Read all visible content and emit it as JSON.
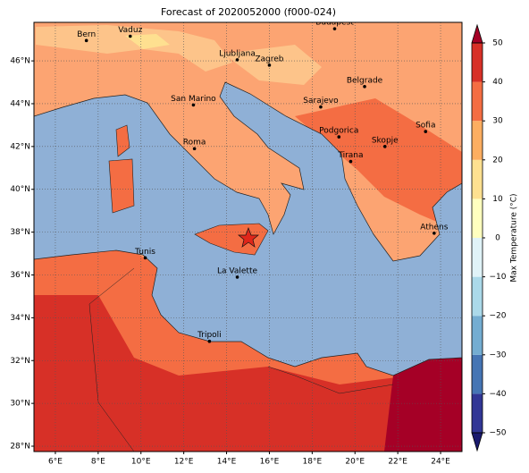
{
  "map": {
    "title": "Forecast of 2020052000 (f000-024)",
    "lon_range": [
      5,
      25
    ],
    "lat_range": [
      27.75,
      47.8
    ],
    "lon_ticks": [
      {
        "value": 6,
        "label": "6°E"
      },
      {
        "value": 8,
        "label": "8°E"
      },
      {
        "value": 10,
        "label": "10°E"
      },
      {
        "value": 12,
        "label": "12°E"
      },
      {
        "value": 14,
        "label": "14°E"
      },
      {
        "value": 16,
        "label": "16°E"
      },
      {
        "value": 18,
        "label": "18°E"
      },
      {
        "value": 20,
        "label": "20°E"
      },
      {
        "value": 22,
        "label": "22°E"
      },
      {
        "value": 24,
        "label": "24°E"
      }
    ],
    "lat_ticks": [
      {
        "value": 28,
        "label": "28°N"
      },
      {
        "value": 30,
        "label": "30°N"
      },
      {
        "value": 32,
        "label": "32°N"
      },
      {
        "value": 34,
        "label": "34°N"
      },
      {
        "value": 36,
        "label": "36°N"
      },
      {
        "value": 38,
        "label": "38°N"
      },
      {
        "value": 40,
        "label": "40°N"
      },
      {
        "value": 42,
        "label": "42°N"
      },
      {
        "value": 44,
        "label": "44°N"
      },
      {
        "value": 46,
        "label": "46°N"
      }
    ],
    "cities": [
      {
        "name": "Bern",
        "lon": 7.45,
        "lat": 46.95
      },
      {
        "name": "Vaduz",
        "lon": 9.5,
        "lat": 47.15
      },
      {
        "name": "Budapest",
        "lon": 19.05,
        "lat": 47.5
      },
      {
        "name": "Ljubljana",
        "lon": 14.5,
        "lat": 46.05
      },
      {
        "name": "Zagreb",
        "lon": 16.0,
        "lat": 45.8
      },
      {
        "name": "San Marino",
        "lon": 12.45,
        "lat": 43.94
      },
      {
        "name": "Belgrade",
        "lon": 20.45,
        "lat": 44.8
      },
      {
        "name": "Sarajevo",
        "lon": 18.4,
        "lat": 43.85
      },
      {
        "name": "Sofia",
        "lon": 23.3,
        "lat": 42.7
      },
      {
        "name": "Podgorica",
        "lon": 19.25,
        "lat": 42.45
      },
      {
        "name": "Skopje",
        "lon": 21.4,
        "lat": 42.0
      },
      {
        "name": "Roma",
        "lon": 12.5,
        "lat": 41.9
      },
      {
        "name": "Tirana",
        "lon": 19.8,
        "lat": 41.3
      },
      {
        "name": "Athens",
        "lon": 23.7,
        "lat": 37.95
      },
      {
        "name": "Tunis",
        "lon": 10.2,
        "lat": 36.8
      },
      {
        "name": "La Valette",
        "lon": 14.5,
        "lat": 35.9
      },
      {
        "name": "Tripoli",
        "lon": 13.2,
        "lat": 32.9
      }
    ],
    "colorbar": {
      "label": "Max Temperature (°C)",
      "ticks": [
        {
          "value": -50,
          "label": "−50"
        },
        {
          "value": -40,
          "label": "−40"
        },
        {
          "value": -30,
          "label": "−30"
        },
        {
          "value": -20,
          "label": "−20"
        },
        {
          "value": -10,
          "label": "−10"
        },
        0,
        10,
        20,
        30,
        40,
        50
      ],
      "colors": [
        "#313695",
        "#4575b4",
        "#74add1",
        "#abd9e9",
        "#e0f3f8",
        "#ffffbf",
        "#fee090",
        "#fdae61",
        "#f46d43",
        "#d73027"
      ],
      "under_color": "#1a1a6e",
      "over_color": "#a50026"
    }
  }
}
